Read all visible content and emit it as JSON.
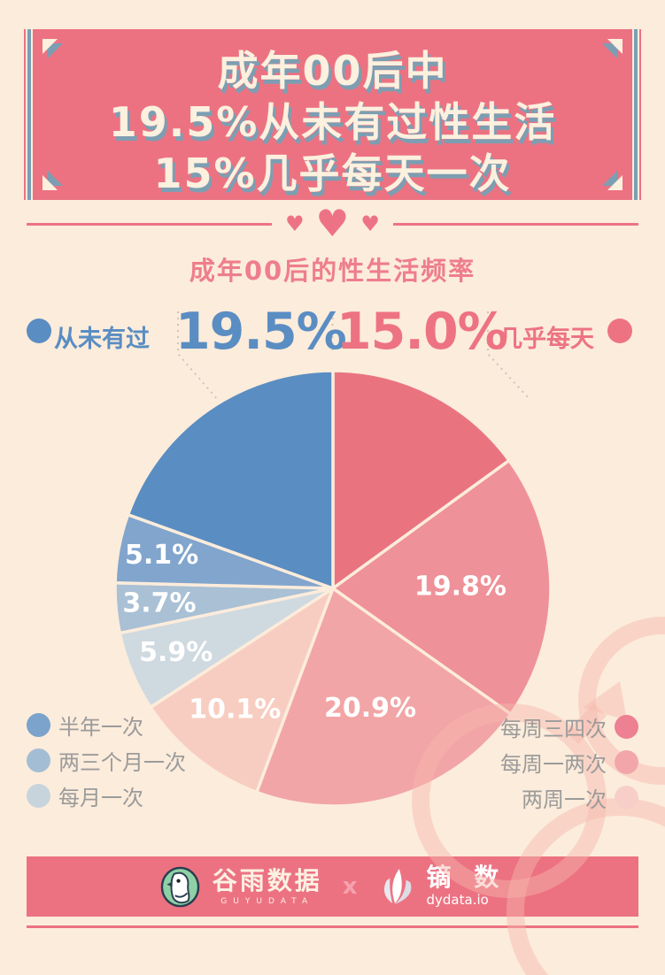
{
  "banner": {
    "lines": [
      "成年00后中",
      "19.5%从未有过性生活",
      "15%几乎每天一次"
    ]
  },
  "divider": {
    "heart": "♥"
  },
  "subtitle": "成年00后的性生活频率",
  "callouts": {
    "left": {
      "label": "从未有过",
      "value": "19.5%"
    },
    "right": {
      "label": "几乎每天",
      "value": "15.0%"
    }
  },
  "chart_data": {
    "type": "pie",
    "title": "成年00后的性生活频率",
    "unit": "%",
    "direction": "clockwise",
    "start": "top",
    "slices": [
      {
        "label": "几乎每天",
        "value": 15.0,
        "color": "#e97480"
      },
      {
        "label": "每周三四次",
        "value": 19.8,
        "color": "#ef9198"
      },
      {
        "label": "每周一两次",
        "value": 20.9,
        "color": "#f2a5a6"
      },
      {
        "label": "两周一次",
        "value": 10.1,
        "color": "#f8cdc1"
      },
      {
        "label": "每月一次",
        "value": 5.9,
        "color": "#cfd9e0"
      },
      {
        "label": "两三个月一次",
        "value": 3.7,
        "color": "#a9c0d5"
      },
      {
        "label": "半年一次",
        "value": 5.1,
        "color": "#81a5cd"
      },
      {
        "label": "从未有过",
        "value": 19.5,
        "color": "#5a8dc2"
      }
    ]
  },
  "legend_left": [
    {
      "label": "半年一次",
      "color": "#7ba3cb"
    },
    {
      "label": "两三个月一次",
      "color": "#a3bdd4"
    },
    {
      "label": "每月一次",
      "color": "#c8d4dc"
    }
  ],
  "legend_right": [
    {
      "label": "每周三四次",
      "color": "#ed8092"
    },
    {
      "label": "每周一两次",
      "color": "#f2a6a9"
    },
    {
      "label": "两周一次",
      "color": "#f8cfc8"
    }
  ],
  "footer": {
    "brand1_name": "谷雨数据",
    "brand1_sub": "GUYUDATA",
    "separator": "x",
    "brand2_name": "镝 数",
    "brand2_sub": "dydata.io"
  },
  "colors": {
    "background": "#fcecdb",
    "banner": "#ec7282",
    "banner_text": "#fcf0de",
    "banner_shadow": "#7d9eb2",
    "accent_coral": "#ed7382",
    "accent_blue": "#5a8dc2",
    "legend_text": "#9b9b9b",
    "slice_label": "#ffffff",
    "watermark": "#f7b8ac"
  }
}
